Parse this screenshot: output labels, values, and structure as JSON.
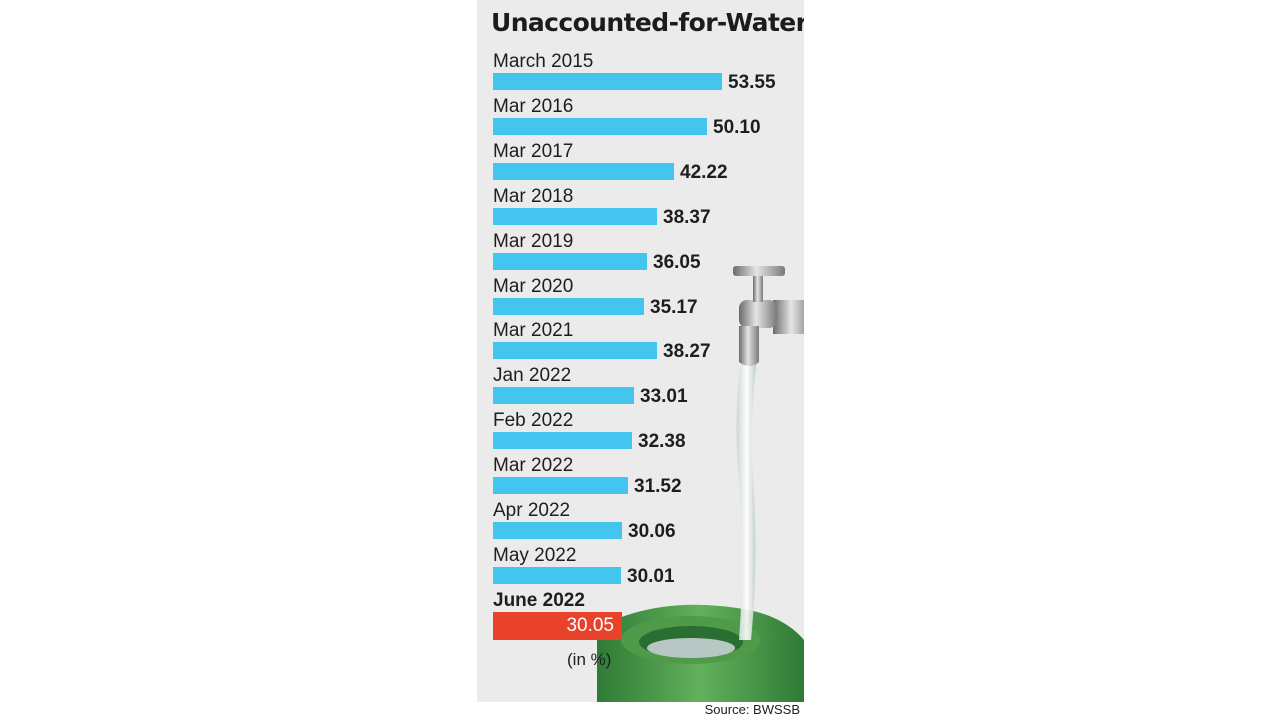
{
  "chart_data": {
    "type": "bar",
    "orientation": "horizontal",
    "title": "Unaccounted-for-Water",
    "unit_note": "(in %)",
    "source": "Source: BWSSB",
    "categories": [
      "March 2015",
      "Mar 2016",
      "Mar 2017",
      "Mar 2018",
      "Mar 2019",
      "Mar 2020",
      "Mar 2021",
      "Jan 2022",
      "Feb 2022",
      "Mar 2022",
      "Apr 2022",
      "May 2022",
      "June 2022"
    ],
    "values": [
      53.55,
      50.1,
      42.22,
      38.37,
      36.05,
      35.17,
      38.27,
      33.01,
      32.38,
      31.52,
      30.06,
      30.01,
      30.05
    ],
    "value_labels": [
      "53.55",
      "50.10",
      "42.22",
      "38.37",
      "36.05",
      "35.17",
      "38.27",
      "33.01",
      "32.38",
      "31.52",
      "30.06",
      "30.01",
      "30.05"
    ],
    "highlight": "June 2022",
    "colors": {
      "bar": "#44c5ef",
      "highlight": "#e8432a",
      "background": "#ebebeb"
    },
    "grid": false,
    "legend": "none"
  }
}
